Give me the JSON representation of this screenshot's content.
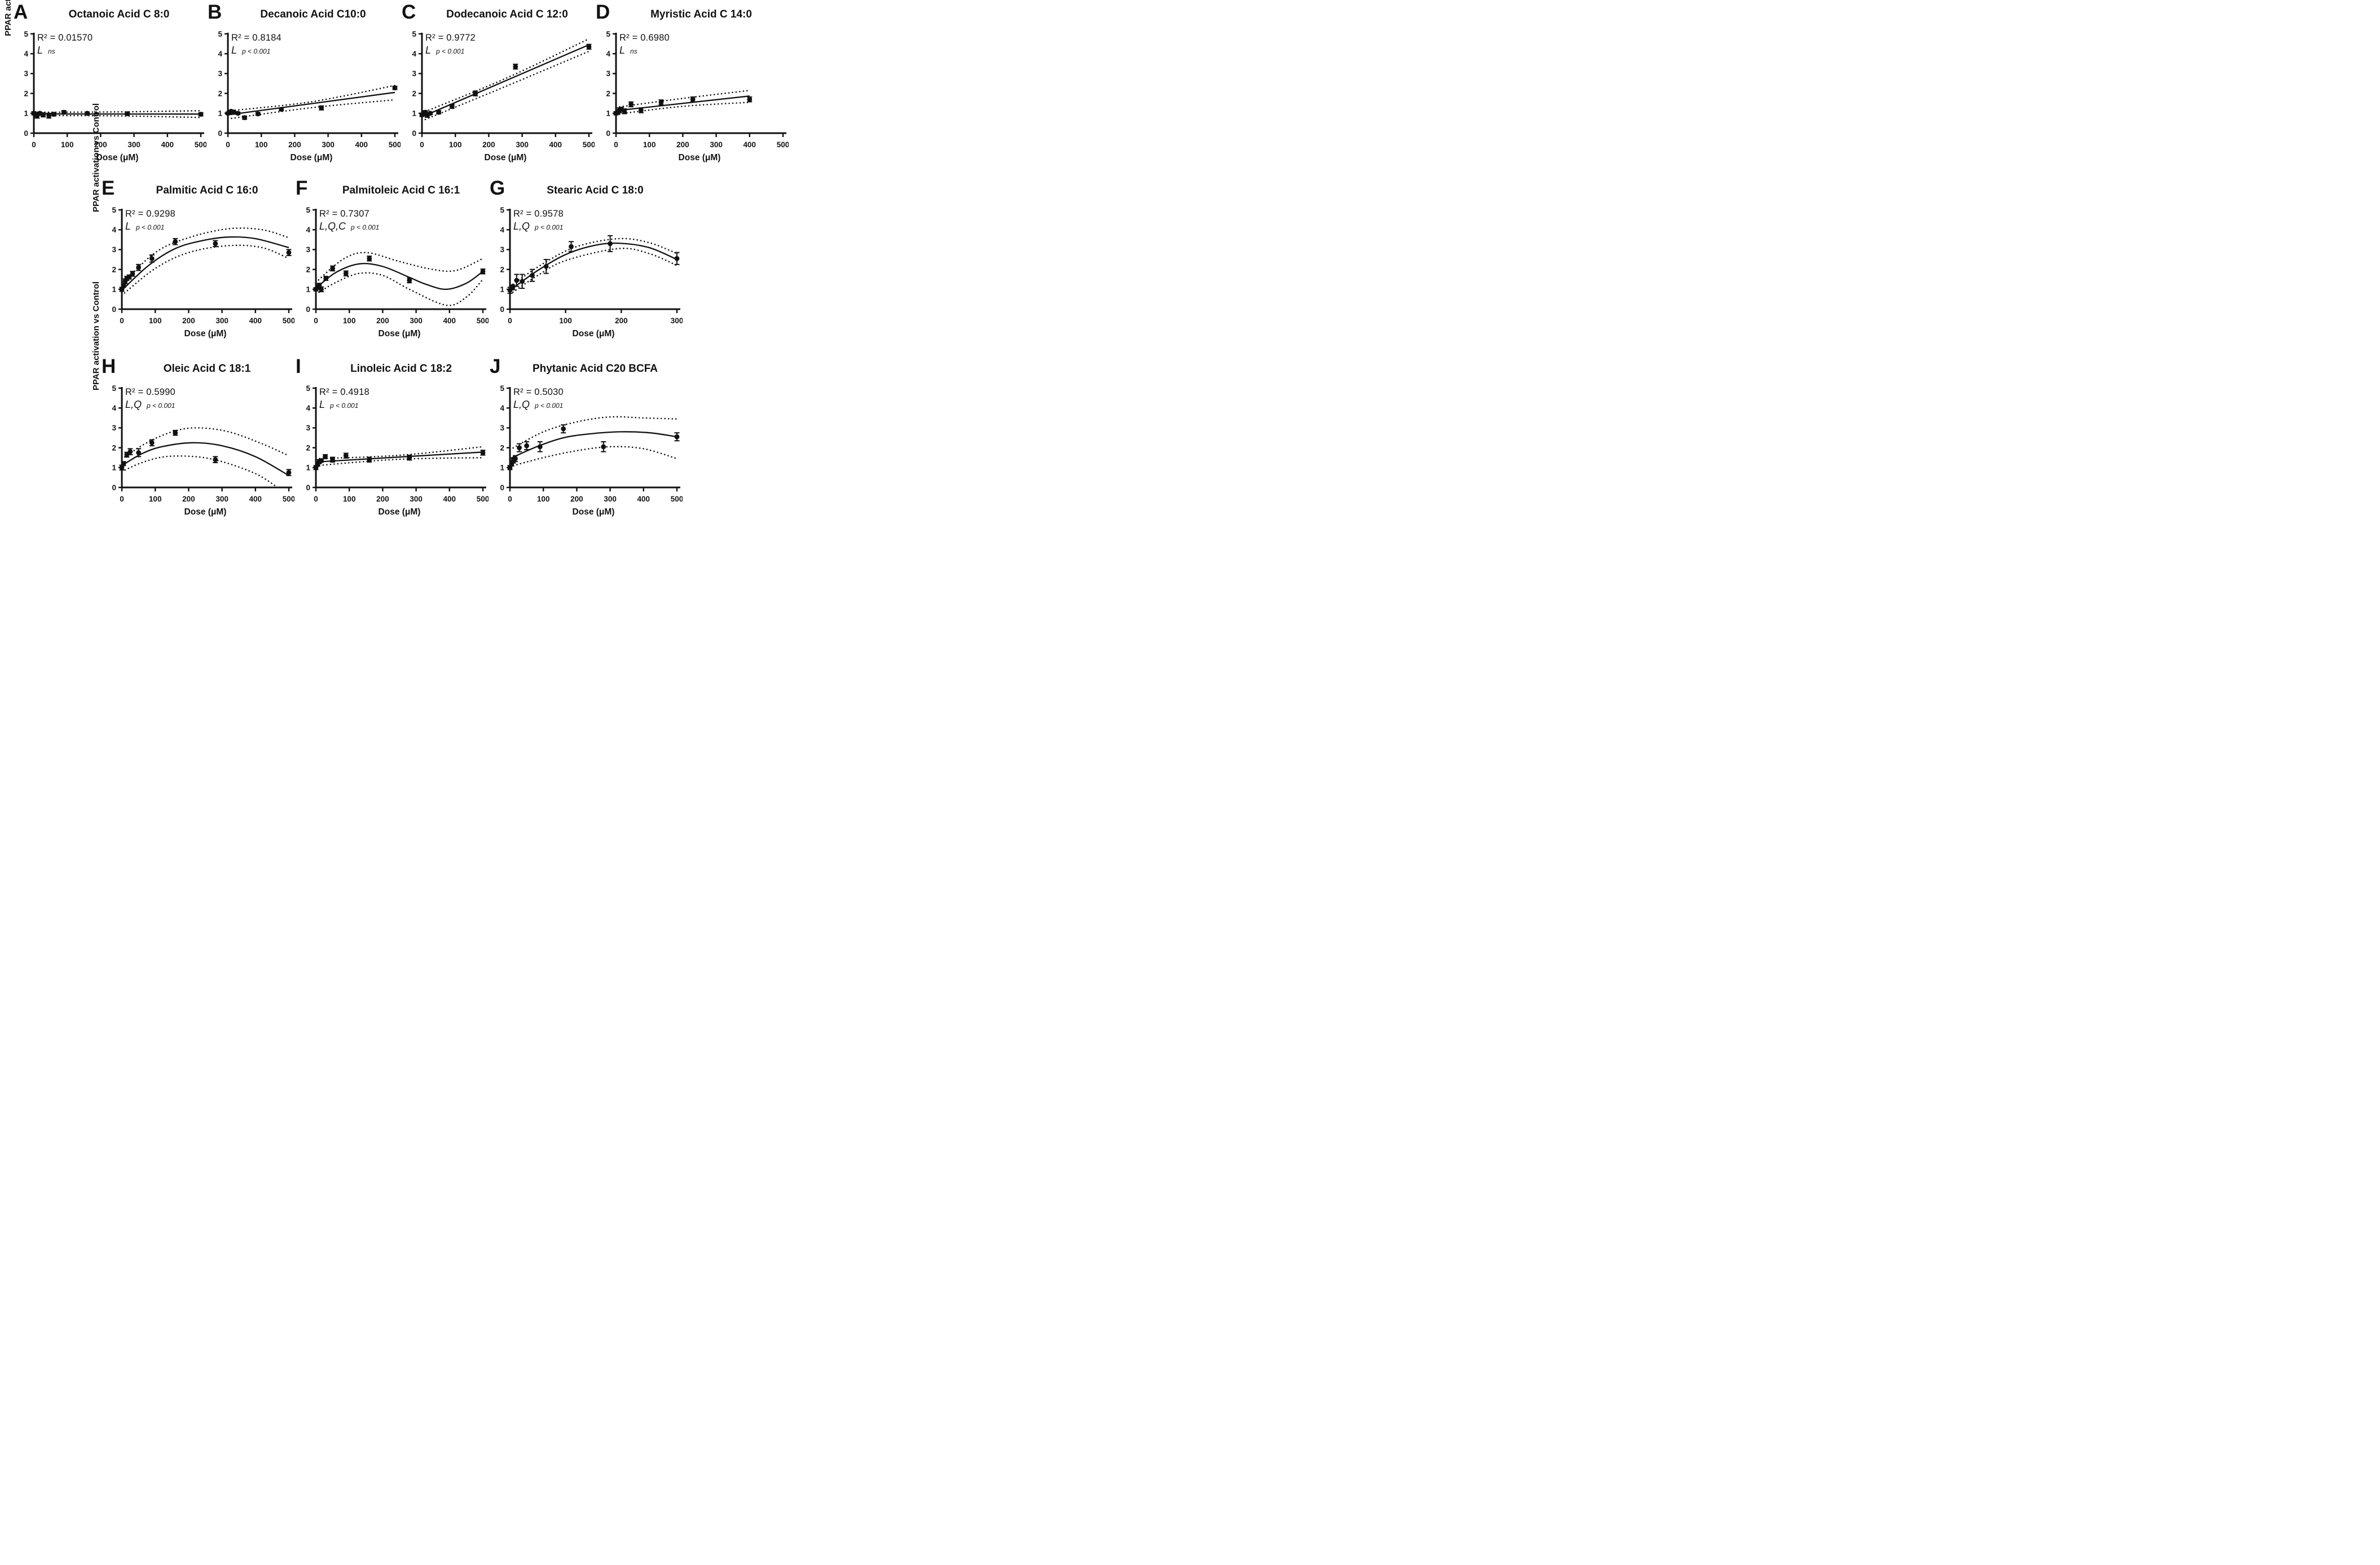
{
  "figure": {
    "ylabel": "PPAR activation vs Control",
    "xlabel": "Dose (μM)",
    "ylim": [
      0,
      5
    ],
    "yticks": [
      0,
      1,
      2,
      3,
      4,
      5
    ]
  },
  "layout_rows": [
    [
      0,
      1,
      2,
      3
    ],
    [
      4,
      5,
      6
    ],
    [
      7,
      8,
      9
    ]
  ],
  "chart_data": [
    {
      "type": "scatter",
      "letter": "A",
      "title": "Octanoic Acid C 8:0",
      "r2_label": "R² = 0.01570",
      "effect_terms": "L",
      "significance": "ns",
      "xlim": [
        0,
        500
      ],
      "xticks": [
        0,
        100,
        200,
        300,
        400,
        500
      ],
      "ylim": [
        0,
        5
      ],
      "fit_type": "linear",
      "points": [
        [
          0,
          1.0,
          0.08
        ],
        [
          5,
          0.93,
          0.1
        ],
        [
          10,
          0.88,
          0.12
        ],
        [
          18,
          1.0,
          0.06
        ],
        [
          28,
          0.92,
          0.1
        ],
        [
          45,
          0.88,
          0.12
        ],
        [
          60,
          0.95,
          0.08
        ],
        [
          90,
          1.05,
          0.08
        ],
        [
          160,
          1.0,
          0.06
        ],
        [
          280,
          0.98,
          0.05
        ],
        [
          500,
          0.95,
          0.08
        ]
      ],
      "fit": [
        [
          0,
          0.97
        ],
        [
          500,
          0.96
        ]
      ],
      "band_upper": [
        [
          0,
          1.05
        ],
        [
          250,
          1.07
        ],
        [
          500,
          1.13
        ]
      ],
      "band_lower": [
        [
          0,
          0.89
        ],
        [
          250,
          0.87
        ],
        [
          500,
          0.79
        ]
      ]
    },
    {
      "type": "scatter",
      "letter": "B",
      "title": "Decanoic Acid C10:0",
      "r2_label": "R² = 0.8184",
      "effect_terms": "L",
      "significance": "p < 0.001",
      "xlim": [
        0,
        500
      ],
      "xticks": [
        0,
        100,
        200,
        300,
        400,
        500
      ],
      "ylim": [
        0,
        5
      ],
      "fit_type": "linear",
      "points": [
        [
          0,
          1.0,
          0.06
        ],
        [
          5,
          1.05,
          0.08
        ],
        [
          10,
          1.1,
          0.06
        ],
        [
          18,
          1.05,
          0.05
        ],
        [
          30,
          1.0,
          0.06
        ],
        [
          50,
          0.78,
          0.08
        ],
        [
          90,
          0.97,
          0.07
        ],
        [
          160,
          1.2,
          0.06
        ],
        [
          280,
          1.27,
          0.1
        ],
        [
          500,
          2.28,
          0.08
        ]
      ],
      "fit": [
        [
          0,
          0.92
        ],
        [
          500,
          2.05
        ]
      ],
      "band_upper": [
        [
          0,
          1.12
        ],
        [
          250,
          1.58
        ],
        [
          500,
          2.4
        ]
      ],
      "band_lower": [
        [
          0,
          0.72
        ],
        [
          250,
          1.28
        ],
        [
          500,
          1.68
        ]
      ]
    },
    {
      "type": "scatter",
      "letter": "C",
      "title": "Dodecanoic Acid C 12:0",
      "r2_label": "R² = 0.9772",
      "effect_terms": "L",
      "significance": "p < 0.001",
      "xlim": [
        0,
        500
      ],
      "xticks": [
        0,
        100,
        200,
        300,
        400,
        500
      ],
      "ylim": [
        0,
        5
      ],
      "fit_type": "linear",
      "points": [
        [
          0,
          0.92,
          0.08
        ],
        [
          5,
          1.0,
          0.1
        ],
        [
          10,
          1.05,
          0.08
        ],
        [
          16,
          0.9,
          0.1
        ],
        [
          25,
          1.0,
          0.06
        ],
        [
          50,
          1.05,
          0.08
        ],
        [
          90,
          1.35,
          0.1
        ],
        [
          160,
          2.0,
          0.12
        ],
        [
          280,
          3.35,
          0.12
        ],
        [
          500,
          4.35,
          0.12
        ]
      ],
      "fit": [
        [
          0,
          0.82
        ],
        [
          500,
          4.45
        ]
      ],
      "band_upper": [
        [
          0,
          1.02
        ],
        [
          250,
          2.75
        ],
        [
          500,
          4.75
        ]
      ],
      "band_lower": [
        [
          0,
          0.62
        ],
        [
          250,
          2.35
        ],
        [
          500,
          4.12
        ]
      ]
    },
    {
      "type": "scatter",
      "letter": "D",
      "title": "Myristic Acid C 14:0",
      "r2_label": "R² = 0.6980",
      "effect_terms": "L",
      "significance": "ns",
      "xlim": [
        0,
        500
      ],
      "xticks": [
        0,
        100,
        200,
        300,
        400,
        500
      ],
      "ylim": [
        0,
        5
      ],
      "fit_type": "linear",
      "points": [
        [
          0,
          1.0,
          0.08
        ],
        [
          5,
          1.05,
          0.1
        ],
        [
          10,
          1.15,
          0.12
        ],
        [
          16,
          1.2,
          0.1
        ],
        [
          25,
          1.1,
          0.12
        ],
        [
          45,
          1.45,
          0.12
        ],
        [
          75,
          1.15,
          0.12
        ],
        [
          135,
          1.55,
          0.12
        ],
        [
          230,
          1.7,
          0.12
        ],
        [
          400,
          1.7,
          0.12
        ]
      ],
      "fit": [
        [
          0,
          1.13
        ],
        [
          400,
          1.87
        ]
      ],
      "band_upper": [
        [
          0,
          1.3
        ],
        [
          200,
          1.75
        ],
        [
          400,
          2.15
        ]
      ],
      "band_lower": [
        [
          0,
          0.95
        ],
        [
          200,
          1.35
        ],
        [
          400,
          1.55
        ]
      ]
    },
    {
      "type": "scatter",
      "letter": "E",
      "title": "Palmitic Acid C 16:0",
      "r2_label": "R² = 0.9298",
      "effect_terms": "L",
      "significance": "p < 0.001",
      "xlim": [
        0,
        500
      ],
      "xticks": [
        0,
        100,
        200,
        300,
        400,
        500
      ],
      "ylim": [
        0,
        5
      ],
      "fit_type": "quadratic",
      "points": [
        [
          0,
          1.0,
          0.1
        ],
        [
          5,
          1.2,
          0.1
        ],
        [
          10,
          1.4,
          0.12
        ],
        [
          15,
          1.55,
          0.1
        ],
        [
          22,
          1.62,
          0.1
        ],
        [
          32,
          1.78,
          0.12
        ],
        [
          50,
          2.1,
          0.15
        ],
        [
          90,
          2.55,
          0.18
        ],
        [
          160,
          3.4,
          0.15
        ],
        [
          280,
          3.3,
          0.15
        ],
        [
          500,
          2.85,
          0.15
        ]
      ],
      "fit": [
        [
          0,
          0.95
        ],
        [
          80,
          2.2
        ],
        [
          160,
          3.05
        ],
        [
          240,
          3.45
        ],
        [
          320,
          3.63
        ],
        [
          400,
          3.55
        ],
        [
          500,
          3.1
        ]
      ],
      "band_upper": [
        [
          0,
          1.25
        ],
        [
          100,
          2.85
        ],
        [
          200,
          3.6
        ],
        [
          320,
          4.05
        ],
        [
          420,
          4.0
        ],
        [
          500,
          3.6
        ]
      ],
      "band_lower": [
        [
          0,
          0.7
        ],
        [
          100,
          2.05
        ],
        [
          200,
          2.85
        ],
        [
          320,
          3.2
        ],
        [
          420,
          3.1
        ],
        [
          500,
          2.55
        ]
      ]
    },
    {
      "type": "scatter",
      "letter": "F",
      "title": "Palmitoleic Acid C 16:1",
      "r2_label": "R² = 0.7307",
      "effect_terms": "L,Q,C",
      "significance": "p < 0.001",
      "xlim": [
        0,
        500
      ],
      "xticks": [
        0,
        100,
        200,
        300,
        400,
        500
      ],
      "ylim": [
        0,
        5
      ],
      "fit_type": "cubic",
      "points": [
        [
          0,
          1.0,
          0.08
        ],
        [
          5,
          1.1,
          0.1
        ],
        [
          10,
          1.2,
          0.1
        ],
        [
          16,
          1.0,
          0.12
        ],
        [
          30,
          1.55,
          0.1
        ],
        [
          50,
          2.05,
          0.12
        ],
        [
          90,
          1.8,
          0.12
        ],
        [
          160,
          2.55,
          0.12
        ],
        [
          280,
          1.45,
          0.12
        ],
        [
          500,
          1.9,
          0.12
        ]
      ],
      "fit": [
        [
          0,
          1.05
        ],
        [
          60,
          1.85
        ],
        [
          130,
          2.28
        ],
        [
          200,
          2.15
        ],
        [
          280,
          1.6
        ],
        [
          330,
          1.25
        ],
        [
          390,
          1.0
        ],
        [
          450,
          1.3
        ],
        [
          500,
          1.9
        ]
      ],
      "band_upper": [
        [
          0,
          1.35
        ],
        [
          80,
          2.5
        ],
        [
          150,
          2.85
        ],
        [
          250,
          2.4
        ],
        [
          350,
          2.0
        ],
        [
          420,
          1.95
        ],
        [
          500,
          2.55
        ]
      ],
      "band_lower": [
        [
          0,
          0.75
        ],
        [
          60,
          1.35
        ],
        [
          130,
          1.8
        ],
        [
          200,
          1.7
        ],
        [
          280,
          1.0
        ],
        [
          390,
          0.2
        ],
        [
          450,
          0.6
        ],
        [
          500,
          1.5
        ]
      ]
    },
    {
      "type": "scatter",
      "letter": "G",
      "title": "Stearic Acid C 18:0",
      "r2_label": "R² = 0.9578",
      "effect_terms": "L,Q",
      "significance": "p < 0.001",
      "xlim": [
        0,
        300
      ],
      "xticks": [
        0,
        100,
        200,
        300
      ],
      "ylim": [
        0,
        5
      ],
      "fit_type": "quadratic",
      "points": [
        [
          0,
          0.95,
          0.15
        ],
        [
          5,
          1.1,
          0.12
        ],
        [
          12,
          1.45,
          0.3
        ],
        [
          22,
          1.4,
          0.35
        ],
        [
          40,
          1.7,
          0.3
        ],
        [
          65,
          2.15,
          0.35
        ],
        [
          110,
          3.15,
          0.25
        ],
        [
          180,
          3.3,
          0.4
        ],
        [
          300,
          2.55,
          0.3
        ]
      ],
      "fit": [
        [
          0,
          0.95
        ],
        [
          50,
          1.95
        ],
        [
          100,
          2.75
        ],
        [
          150,
          3.2
        ],
        [
          195,
          3.32
        ],
        [
          250,
          3.1
        ],
        [
          300,
          2.5
        ]
      ],
      "band_upper": [
        [
          0,
          1.15
        ],
        [
          60,
          2.3
        ],
        [
          120,
          3.15
        ],
        [
          195,
          3.55
        ],
        [
          250,
          3.35
        ],
        [
          300,
          2.8
        ]
      ],
      "band_lower": [
        [
          0,
          0.75
        ],
        [
          50,
          1.7
        ],
        [
          100,
          2.45
        ],
        [
          195,
          3.05
        ],
        [
          250,
          2.8
        ],
        [
          300,
          2.2
        ]
      ]
    },
    {
      "type": "scatter",
      "letter": "H",
      "title": "Oleic Acid C 18:1",
      "r2_label": "R² = 0.5990",
      "effect_terms": "L,Q",
      "significance": "p < 0.001",
      "xlim": [
        0,
        500
      ],
      "xticks": [
        0,
        100,
        200,
        300,
        400,
        500
      ],
      "ylim": [
        0,
        5
      ],
      "fit_type": "quadratic",
      "points": [
        [
          0,
          1.0,
          0.12
        ],
        [
          5,
          1.2,
          0.1
        ],
        [
          15,
          1.65,
          0.12
        ],
        [
          25,
          1.8,
          0.15
        ],
        [
          50,
          1.75,
          0.2
        ],
        [
          90,
          2.25,
          0.15
        ],
        [
          160,
          2.75,
          0.12
        ],
        [
          280,
          1.4,
          0.15
        ],
        [
          500,
          0.75,
          0.15
        ]
      ],
      "fit": [
        [
          0,
          1.1
        ],
        [
          60,
          1.7
        ],
        [
          120,
          2.05
        ],
        [
          210,
          2.25
        ],
        [
          300,
          2.1
        ],
        [
          400,
          1.55
        ],
        [
          500,
          0.6
        ]
      ],
      "band_upper": [
        [
          0,
          1.45
        ],
        [
          80,
          2.3
        ],
        [
          160,
          2.85
        ],
        [
          230,
          3.0
        ],
        [
          320,
          2.8
        ],
        [
          420,
          2.2
        ],
        [
          500,
          1.6
        ]
      ],
      "band_lower": [
        [
          0,
          0.8
        ],
        [
          60,
          1.25
        ],
        [
          130,
          1.55
        ],
        [
          220,
          1.55
        ],
        [
          300,
          1.3
        ],
        [
          400,
          0.7
        ],
        [
          465,
          0.02
        ]
      ]
    },
    {
      "type": "scatter",
      "letter": "I",
      "title": "Linoleic Acid C 18:2",
      "r2_label": "R² = 0.4918",
      "effect_terms": "L",
      "significance": "p < 0.001",
      "xlim": [
        0,
        500
      ],
      "xticks": [
        0,
        100,
        200,
        300,
        400,
        500
      ],
      "ylim": [
        0,
        5
      ],
      "fit_type": "linear",
      "points": [
        [
          0,
          1.0,
          0.1
        ],
        [
          5,
          1.15,
          0.08
        ],
        [
          10,
          1.3,
          0.1
        ],
        [
          16,
          1.35,
          0.08
        ],
        [
          28,
          1.55,
          0.1
        ],
        [
          50,
          1.4,
          0.12
        ],
        [
          90,
          1.6,
          0.12
        ],
        [
          160,
          1.4,
          0.12
        ],
        [
          280,
          1.5,
          0.12
        ],
        [
          500,
          1.75,
          0.12
        ]
      ],
      "fit": [
        [
          0,
          1.28
        ],
        [
          500,
          1.78
        ]
      ],
      "band_upper": [
        [
          0,
          1.45
        ],
        [
          250,
          1.62
        ],
        [
          500,
          2.05
        ]
      ],
      "band_lower": [
        [
          0,
          1.1
        ],
        [
          250,
          1.42
        ],
        [
          500,
          1.5
        ]
      ]
    },
    {
      "type": "scatter",
      "letter": "J",
      "title": "Phytanic Acid C20 BCFA",
      "r2_label": "R² = 0.5030",
      "effect_terms": "L,Q",
      "significance": "p < 0.001",
      "xlim": [
        0,
        500
      ],
      "xticks": [
        0,
        100,
        200,
        300,
        400,
        500
      ],
      "ylim": [
        0,
        5
      ],
      "fit_type": "quadratic",
      "points": [
        [
          0,
          1.0,
          0.1
        ],
        [
          5,
          1.2,
          0.12
        ],
        [
          10,
          1.35,
          0.12
        ],
        [
          16,
          1.45,
          0.15
        ],
        [
          28,
          2.0,
          0.2
        ],
        [
          50,
          2.1,
          0.2
        ],
        [
          90,
          2.05,
          0.25
        ],
        [
          160,
          2.95,
          0.2
        ],
        [
          280,
          2.05,
          0.25
        ],
        [
          500,
          2.55,
          0.2
        ]
      ],
      "fit": [
        [
          0,
          1.45
        ],
        [
          80,
          2.05
        ],
        [
          160,
          2.5
        ],
        [
          240,
          2.7
        ],
        [
          330,
          2.8
        ],
        [
          420,
          2.75
        ],
        [
          500,
          2.55
        ]
      ],
      "band_upper": [
        [
          0,
          1.9
        ],
        [
          100,
          2.8
        ],
        [
          200,
          3.3
        ],
        [
          300,
          3.55
        ],
        [
          400,
          3.5
        ],
        [
          500,
          3.45
        ]
      ],
      "band_lower": [
        [
          0,
          1.05
        ],
        [
          100,
          1.5
        ],
        [
          200,
          1.85
        ],
        [
          300,
          2.05
        ],
        [
          400,
          1.95
        ],
        [
          500,
          1.45
        ]
      ]
    }
  ]
}
